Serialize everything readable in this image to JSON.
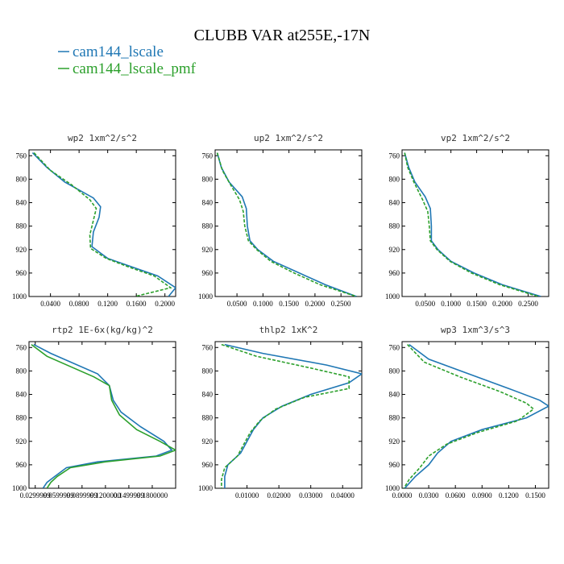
{
  "figure": {
    "title": "CLUBB VAR at255E,-17N",
    "legend": [
      {
        "label": "cam144_lscale",
        "color": "#1f77b4"
      },
      {
        "label": "cam144_lscale_pmf",
        "color": "#2ca02c"
      }
    ]
  },
  "chart_data": [
    {
      "type": "line",
      "title": "wp2  1xm^2/s^2",
      "xlim": [
        0.01,
        0.215
      ],
      "ylim": [
        1000,
        750
      ],
      "x_ticks": [
        0.04,
        0.08,
        0.12,
        0.16,
        0.2
      ],
      "x_tick_labels": [
        "0.0400",
        "0.0800",
        "0.1200",
        "0.1600",
        "0.2000"
      ],
      "y_ticks": [
        760,
        800,
        840,
        880,
        920,
        960,
        1000
      ],
      "series": [
        {
          "name": "cam144_lscale",
          "color": "#1f77b4",
          "dash": "",
          "y": [
            755,
            780,
            805,
            832,
            847,
            865,
            890,
            915,
            935,
            950,
            965,
            985,
            1000
          ],
          "x": [
            0.015,
            0.035,
            0.06,
            0.1,
            0.11,
            0.108,
            0.1,
            0.098,
            0.12,
            0.155,
            0.19,
            0.215,
            0.205
          ]
        },
        {
          "name": "cam144_lscale_pmf",
          "color": "#2ca02c",
          "dash": "4,2",
          "y": [
            755,
            785,
            810,
            835,
            850,
            870,
            895,
            918,
            935,
            950,
            965,
            985,
            1000
          ],
          "x": [
            0.017,
            0.04,
            0.07,
            0.095,
            0.104,
            0.1,
            0.095,
            0.096,
            0.118,
            0.15,
            0.185,
            0.208,
            0.158
          ]
        }
      ]
    },
    {
      "type": "line",
      "title": "up2  1xm^2/s^2",
      "xlim": [
        0.008,
        0.29
      ],
      "ylim": [
        1000,
        750
      ],
      "x_ticks": [
        0.05,
        0.1,
        0.15,
        0.2,
        0.25
      ],
      "x_tick_labels": [
        "0.0500",
        "0.1000",
        "0.1500",
        "0.2000",
        "0.2500"
      ],
      "y_ticks": [
        760,
        800,
        840,
        880,
        920,
        960,
        1000
      ],
      "series": [
        {
          "name": "cam144_lscale",
          "color": "#1f77b4",
          "dash": "",
          "y": [
            755,
            780,
            805,
            830,
            850,
            880,
            905,
            920,
            940,
            960,
            980,
            1000
          ],
          "x": [
            0.012,
            0.02,
            0.035,
            0.06,
            0.068,
            0.07,
            0.075,
            0.09,
            0.12,
            0.17,
            0.22,
            0.28
          ]
        },
        {
          "name": "cam144_lscale_pmf",
          "color": "#2ca02c",
          "dash": "4,2",
          "y": [
            755,
            785,
            810,
            835,
            855,
            880,
            905,
            920,
            940,
            960,
            980,
            1000
          ],
          "x": [
            0.012,
            0.022,
            0.038,
            0.055,
            0.062,
            0.065,
            0.072,
            0.088,
            0.115,
            0.16,
            0.21,
            0.28
          ]
        }
      ]
    },
    {
      "type": "line",
      "title": "vp2  1xm^2/s^2",
      "xlim": [
        0.005,
        0.29
      ],
      "ylim": [
        1000,
        750
      ],
      "x_ticks": [
        0.05,
        0.1,
        0.15,
        0.2,
        0.25
      ],
      "x_tick_labels": [
        "0.0500",
        "0.1000",
        "0.1500",
        "0.2000",
        "0.2500"
      ],
      "y_ticks": [
        760,
        800,
        840,
        880,
        920,
        960,
        1000
      ],
      "series": [
        {
          "name": "cam144_lscale",
          "color": "#1f77b4",
          "dash": "",
          "y": [
            755,
            780,
            805,
            830,
            850,
            880,
            905,
            920,
            940,
            960,
            980,
            1000
          ],
          "x": [
            0.01,
            0.018,
            0.03,
            0.05,
            0.06,
            0.062,
            0.062,
            0.075,
            0.1,
            0.145,
            0.2,
            0.275
          ]
        },
        {
          "name": "cam144_lscale_pmf",
          "color": "#2ca02c",
          "dash": "4,2",
          "y": [
            755,
            780,
            805,
            835,
            855,
            880,
            905,
            920,
            940,
            960,
            980,
            1000
          ],
          "x": [
            0.01,
            0.016,
            0.028,
            0.045,
            0.055,
            0.058,
            0.06,
            0.073,
            0.098,
            0.14,
            0.195,
            0.27
          ]
        }
      ]
    },
    {
      "type": "line",
      "title": "rtp2  1E-6x(kg/kg)^2",
      "xlim": [
        0.022,
        0.21
      ],
      "ylim": [
        1000,
        750
      ],
      "x_ticks": [
        0.03,
        0.06,
        0.09,
        0.12,
        0.15,
        0.18
      ],
      "x_tick_labels": [
        "0.0299999",
        "0.0599999",
        "0.0899999",
        "0.1200000",
        "0.1499999",
        "0.1800000"
      ],
      "y_ticks": [
        760,
        800,
        840,
        880,
        920,
        960,
        1000
      ],
      "series": [
        {
          "name": "cam144_lscale",
          "color": "#1f77b4",
          "dash": "",
          "y": [
            755,
            770,
            805,
            825,
            850,
            870,
            895,
            920,
            935,
            945,
            955,
            965,
            980,
            990,
            1000
          ],
          "x": [
            0.028,
            0.05,
            0.11,
            0.125,
            0.13,
            0.14,
            0.165,
            0.195,
            0.205,
            0.185,
            0.11,
            0.07,
            0.055,
            0.045,
            0.04
          ]
        },
        {
          "name": "cam144_lscale_pmf",
          "color": "#2ca02c",
          "dash": "",
          "y": [
            755,
            775,
            810,
            825,
            850,
            875,
            900,
            920,
            935,
            945,
            955,
            965,
            980,
            990,
            1000
          ],
          "x": [
            0.025,
            0.045,
            0.105,
            0.125,
            0.128,
            0.138,
            0.16,
            0.19,
            0.21,
            0.19,
            0.12,
            0.075,
            0.058,
            0.05,
            0.045
          ]
        }
      ]
    },
    {
      "type": "line",
      "title": "thlp2  1xK^2",
      "xlim": [
        0.0,
        0.046
      ],
      "ylim": [
        1000,
        750
      ],
      "x_ticks": [
        0.01,
        0.02,
        0.03,
        0.04
      ],
      "x_tick_labels": [
        "0.01000",
        "0.02000",
        "0.03000",
        "0.04000"
      ],
      "y_ticks": [
        760,
        800,
        840,
        880,
        920,
        960,
        1000
      ],
      "series": [
        {
          "name": "cam144_lscale",
          "color": "#1f77b4",
          "dash": "",
          "y": [
            755,
            770,
            790,
            805,
            820,
            840,
            860,
            880,
            900,
            920,
            940,
            960,
            980,
            1000
          ],
          "x": [
            0.003,
            0.015,
            0.035,
            0.046,
            0.042,
            0.03,
            0.021,
            0.015,
            0.012,
            0.01,
            0.008,
            0.004,
            0.003,
            0.003
          ]
        },
        {
          "name": "cam144_lscale_pmf",
          "color": "#2ca02c",
          "dash": "4,2",
          "y": [
            755,
            775,
            795,
            810,
            830,
            845,
            865,
            885,
            905,
            925,
            945,
            965,
            985,
            1000
          ],
          "x": [
            0.002,
            0.013,
            0.03,
            0.042,
            0.042,
            0.028,
            0.019,
            0.014,
            0.011,
            0.009,
            0.007,
            0.003,
            0.002,
            0.002
          ]
        }
      ]
    },
    {
      "type": "line",
      "title": "wp3  1xm^3/s^3",
      "xlim": [
        0.0,
        0.165
      ],
      "ylim": [
        1000,
        750
      ],
      "x_ticks": [
        0.0,
        0.03,
        0.06,
        0.09,
        0.12,
        0.15
      ],
      "x_tick_labels": [
        "0.0000",
        "0.0300",
        "0.0600",
        "0.0900",
        "0.1200",
        "0.1500"
      ],
      "y_ticks": [
        760,
        800,
        840,
        880,
        920,
        960,
        1000
      ],
      "series": [
        {
          "name": "cam144_lscale",
          "color": "#1f77b4",
          "dash": "",
          "y": [
            755,
            780,
            805,
            830,
            850,
            860,
            880,
            900,
            920,
            940,
            960,
            980,
            1000
          ],
          "x": [
            0.008,
            0.03,
            0.075,
            0.12,
            0.155,
            0.165,
            0.14,
            0.09,
            0.055,
            0.04,
            0.03,
            0.015,
            0.003
          ]
        },
        {
          "name": "cam144_lscale_pmf",
          "color": "#2ca02c",
          "dash": "4,2",
          "y": [
            755,
            785,
            810,
            835,
            855,
            865,
            885,
            905,
            925,
            945,
            965,
            985,
            1000
          ],
          "x": [
            0.006,
            0.025,
            0.065,
            0.11,
            0.14,
            0.148,
            0.13,
            0.085,
            0.05,
            0.03,
            0.02,
            0.008,
            0.002
          ]
        }
      ]
    }
  ]
}
